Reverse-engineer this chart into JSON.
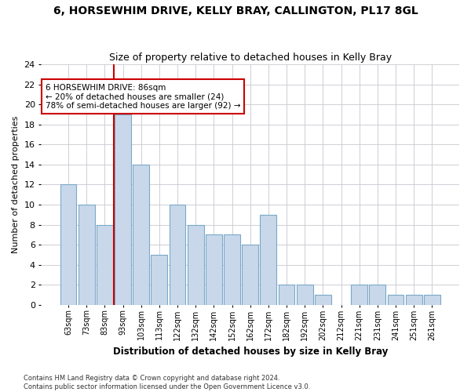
{
  "title1": "6, HORSEWHIM DRIVE, KELLY BRAY, CALLINGTON, PL17 8GL",
  "title2": "Size of property relative to detached houses in Kelly Bray",
  "xlabel": "Distribution of detached houses by size in Kelly Bray",
  "ylabel": "Number of detached properties",
  "categories": [
    "63sqm",
    "73sqm",
    "83sqm",
    "93sqm",
    "103sqm",
    "113sqm",
    "122sqm",
    "132sqm",
    "142sqm",
    "152sqm",
    "162sqm",
    "172sqm",
    "182sqm",
    "192sqm",
    "202sqm",
    "212sqm",
    "221sqm",
    "231sqm",
    "241sqm",
    "251sqm",
    "261sqm"
  ],
  "values": [
    12,
    10,
    8,
    19,
    14,
    5,
    10,
    8,
    7,
    7,
    6,
    9,
    2,
    2,
    1,
    0,
    2,
    2,
    1,
    1,
    1
  ],
  "bar_color": "#c8d8ea",
  "bar_edge_color": "#7aa8c8",
  "vline_x": 2.5,
  "vline_color": "#cc0000",
  "annotation_text": "6 HORSEWHIM DRIVE: 86sqm\n← 20% of detached houses are smaller (24)\n78% of semi-detached houses are larger (92) →",
  "annotation_box_color": "#ffffff",
  "annotation_box_edge": "#cc0000",
  "ylim": [
    0,
    24
  ],
  "yticks": [
    0,
    2,
    4,
    6,
    8,
    10,
    12,
    14,
    16,
    18,
    20,
    22,
    24
  ],
  "footnote": "Contains HM Land Registry data © Crown copyright and database right 2024.\nContains public sector information licensed under the Open Government Licence v3.0.",
  "bg_color": "#ffffff",
  "plot_bg_color": "#ffffff",
  "grid_color": "#c8c8d0"
}
